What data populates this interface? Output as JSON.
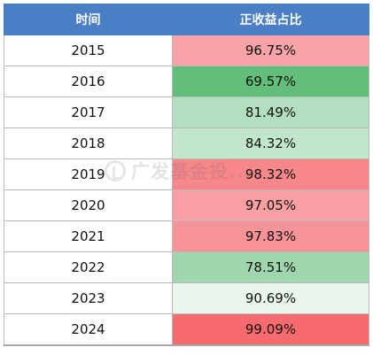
{
  "table": {
    "headers": [
      "时间",
      "正收益占比"
    ],
    "rows": [
      {
        "year": "2015",
        "ratio": "96.75%",
        "color": "#f7a3a7"
      },
      {
        "year": "2016",
        "ratio": "69.57%",
        "color": "#63be7b"
      },
      {
        "year": "2017",
        "ratio": "81.49%",
        "color": "#b2dfbf"
      },
      {
        "year": "2018",
        "ratio": "84.32%",
        "color": "#c2e6cb"
      },
      {
        "year": "2019",
        "ratio": "98.32%",
        "color": "#f8878b"
      },
      {
        "year": "2020",
        "ratio": "97.05%",
        "color": "#f79fa2"
      },
      {
        "year": "2021",
        "ratio": "97.83%",
        "color": "#f79296"
      },
      {
        "year": "2022",
        "ratio": "78.51%",
        "color": "#9fd6ae"
      },
      {
        "year": "2023",
        "ratio": "90.69%",
        "color": "#eaf5ec"
      },
      {
        "year": "2024",
        "ratio": "99.09%",
        "color": "#f76a6f"
      }
    ],
    "header_color": "#4a7fc5"
  },
  "watermark": {
    "text": "广发基金投...",
    "icon": "brand-logo-icon"
  }
}
